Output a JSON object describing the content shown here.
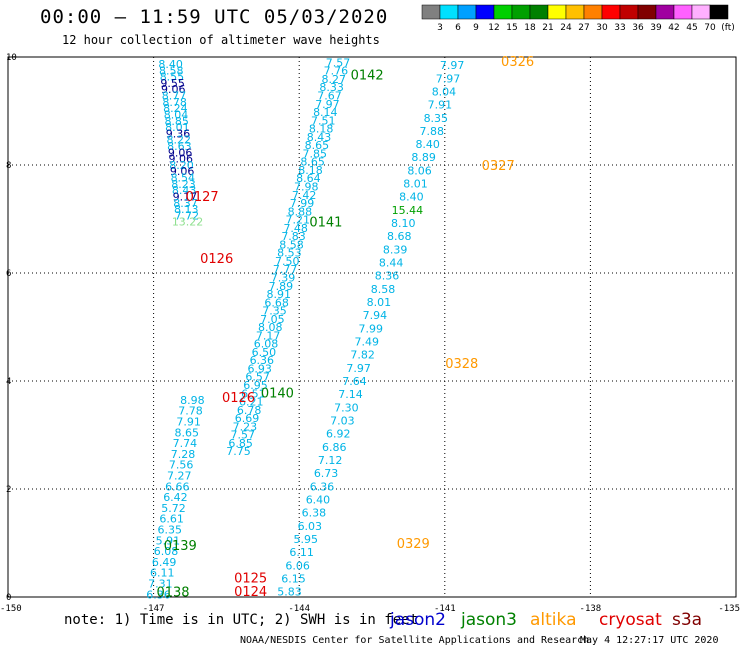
{
  "header": {
    "title": "00:00 – 11:59 UTC 05/03/2020",
    "subtitle": "12 hour collection of altimeter wave heights"
  },
  "colorbar": {
    "segments": [
      {
        "color": "#808080"
      },
      {
        "color": "#00e0ff"
      },
      {
        "color": "#00a0ff"
      },
      {
        "color": "#0000ff"
      },
      {
        "color": "#00d000"
      },
      {
        "color": "#00a000"
      },
      {
        "color": "#008000"
      },
      {
        "color": "#ffff00"
      },
      {
        "color": "#ffc000"
      },
      {
        "color": "#ff8000"
      },
      {
        "color": "#ff0000"
      },
      {
        "color": "#c00000"
      },
      {
        "color": "#800000"
      },
      {
        "color": "#a000a0"
      },
      {
        "color": "#ff60ff"
      },
      {
        "color": "#ffb0ff"
      },
      {
        "color": "#000000"
      }
    ],
    "tick_labels": [
      "3",
      "6",
      "9",
      "12",
      "15",
      "18",
      "21",
      "24",
      "27",
      "30",
      "33",
      "36",
      "39",
      "42",
      "45",
      "70",
      "(ft)"
    ]
  },
  "chart_data": {
    "type": "scatter",
    "xlim": [
      -150,
      -135
    ],
    "ylim": [
      0,
      10
    ],
    "x_ticks": [
      "-150",
      "-147",
      "-144",
      "-141",
      "-138",
      "-135"
    ],
    "y_ticks": [
      "0",
      "2",
      "4",
      "6",
      "8",
      "10"
    ],
    "grid": "dotted",
    "colors": {
      "h6": "#00b4e6",
      "h9": "#00008c",
      "h15": "#00a000",
      "h12": "#90e090"
    },
    "tracks": [
      {
        "id": "t1",
        "x0": -146.65,
        "x1": -146.3,
        "y_top": 9.87,
        "y_bot": 6.95,
        "values": [
          "8.40",
          "8.58",
          "8.55",
          "9.55",
          "9.06",
          "8.77",
          "8.78",
          "8.24",
          "8.04",
          "8.85",
          "8.01",
          "9.36",
          "8.22",
          "8.63",
          "9.06",
          "9.06",
          "8.20",
          "9.06",
          "8.54",
          "8.23",
          "8.43",
          "9.17",
          "8.37",
          "8.13",
          "7.72",
          "13.22"
        ]
      },
      {
        "id": "t2",
        "x0": -143.2,
        "x1": -145.25,
        "y_top": 9.9,
        "y_bot": 2.7,
        "values": [
          "7.57",
          "7.76",
          "8.27",
          "8.33",
          "7.67",
          "7.97",
          "8.14",
          "7.51",
          "8.18",
          "8.43",
          "8.65",
          "7.85",
          "8.65",
          "8.18",
          "8.64",
          "7.98",
          "7.42",
          "7.99",
          "8.88",
          "7.21",
          "7.48",
          "7.83",
          "8.58",
          "8.53",
          "7.50",
          "7.77",
          "7.39",
          "7.89",
          "8.91",
          "6.68",
          "7.35",
          "7.05",
          "8.08",
          "7.17",
          "6.08",
          "6.50",
          "6.36",
          "6.93",
          "6.57",
          "6.95",
          "6.51",
          "6.21",
          "6.78",
          "6.69",
          "7.23",
          "7.57",
          "6.85",
          "7.75"
        ]
      },
      {
        "id": "t3",
        "x0": -146.2,
        "x1": -146.9,
        "y_top": 3.65,
        "y_bot": 0.05,
        "values": [
          "8.98",
          "7.78",
          "7.91",
          "8.65",
          "7.74",
          "7.28",
          "7.56",
          "7.27",
          "6.66",
          "6.42",
          "5.72",
          "6.61",
          "6.35",
          "5.91",
          "6.08",
          "6.49",
          "6.11",
          "7.31",
          "6.36"
        ]
      },
      {
        "id": "t4",
        "x0": -140.85,
        "x1": -144.2,
        "y_top": 9.85,
        "y_bot": 0.1,
        "values": [
          "7.97",
          "7.97",
          "8.04",
          "7.91",
          "8.35",
          "7.88",
          "8.40",
          "8.89",
          "8.06",
          "8.01",
          "8.40",
          "15.44",
          "8.10",
          "8.68",
          "8.39",
          "8.44",
          "8.36",
          "8.58",
          "8.01",
          "7.94",
          "7.99",
          "7.49",
          "7.82",
          "7.97",
          "7.64",
          "7.14",
          "7.30",
          "7.03",
          "6.92",
          "6.86",
          "7.12",
          "6.73",
          "6.36",
          "6.40",
          "6.38",
          "6.03",
          "5.95",
          "6.11",
          "6.06",
          "6.15",
          "5.83"
        ]
      }
    ],
    "pass_labels": [
      {
        "text": "0326",
        "x": -139.5,
        "y": 9.93,
        "color": "#ff9900"
      },
      {
        "text": "0327",
        "x": -139.9,
        "y": 8.0,
        "color": "#ff9900"
      },
      {
        "text": "0328",
        "x": -140.65,
        "y": 4.33,
        "color": "#ff9900"
      },
      {
        "text": "0329",
        "x": -141.65,
        "y": 1.0,
        "color": "#ff9900"
      },
      {
        "text": "0142",
        "x": -142.6,
        "y": 9.68,
        "color": "#008000"
      },
      {
        "text": "0141",
        "x": -143.45,
        "y": 6.95,
        "color": "#008000"
      },
      {
        "text": "0140",
        "x": -144.45,
        "y": 3.79,
        "color": "#008000"
      },
      {
        "text": "0139",
        "x": -146.45,
        "y": 0.96,
        "color": "#008000"
      },
      {
        "text": "0138",
        "x": -146.6,
        "y": 0.1,
        "color": "#008000"
      },
      {
        "text": "0127",
        "x": -146.0,
        "y": 7.43,
        "color": "#e00000"
      },
      {
        "text": "0126",
        "x": -145.7,
        "y": 6.28,
        "color": "#e00000"
      },
      {
        "text": "0126",
        "x": -145.25,
        "y": 3.7,
        "color": "#e00000"
      },
      {
        "text": "0125",
        "x": -145.0,
        "y": 0.36,
        "color": "#e00000"
      },
      {
        "text": "0124",
        "x": -145.0,
        "y": 0.11,
        "color": "#e00000"
      }
    ]
  },
  "footer": {
    "note": "note: 1) Time is in UTC; 2) SWH is in feet",
    "satellites": [
      {
        "label": "jason2",
        "color": "#0000cc",
        "pos": "390px"
      },
      {
        "label": "jason3",
        "color": "#008000",
        "pos": "461px"
      },
      {
        "label": "altika",
        "color": "#ff9900",
        "pos": "530px"
      },
      {
        "label": "cryosat",
        "color": "#e00000",
        "pos": "599px"
      },
      {
        "label": "s3a",
        "color": "#800000",
        "pos": "672px"
      }
    ],
    "credit": "NOAA/NESDIS Center for Satellite Applications and Research",
    "date": "May  4 12:27:17 UTC 2020"
  }
}
